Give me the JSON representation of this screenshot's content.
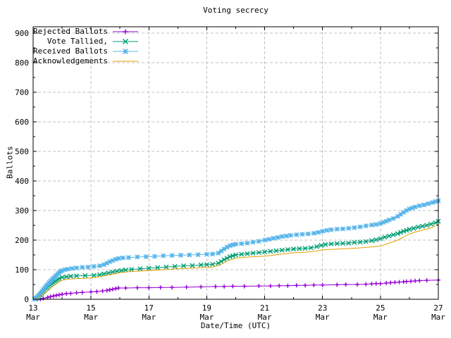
{
  "title": "Voting secrecy",
  "xlabel": "Date/Time (UTC)",
  "ylabel": "Ballots",
  "colors": {
    "background": "#ffffff",
    "border": "#000000",
    "grid": "#c0c0c0",
    "text": "#000000",
    "rejected": "#9400d3",
    "tallied": "#009e73",
    "received": "#56b4e9",
    "acknowledgements": "#e69f00"
  },
  "chart_data": {
    "type": "line",
    "title": "Voting secrecy",
    "xlabel": "Date/Time (UTC)",
    "ylabel": "Ballots",
    "x_unit": "day of March (UTC)",
    "xlim": [
      13,
      27
    ],
    "ylim": [
      0,
      921
    ],
    "grid": true,
    "legend_position": "top-left",
    "y_ticks": [
      0,
      100,
      200,
      300,
      400,
      500,
      600,
      700,
      800,
      900
    ],
    "y_minor_ticks": [
      50,
      150,
      250,
      350,
      450,
      550,
      650,
      750,
      850
    ],
    "x_ticks": [
      {
        "value": 13,
        "label": "13",
        "sub": "Mar"
      },
      {
        "value": 15,
        "label": "15",
        "sub": "Mar"
      },
      {
        "value": 17,
        "label": "17",
        "sub": "Mar"
      },
      {
        "value": 19,
        "label": "19",
        "sub": "Mar"
      },
      {
        "value": 21,
        "label": "21",
        "sub": "Mar"
      },
      {
        "value": 23,
        "label": "23",
        "sub": "Mar"
      },
      {
        "value": 25,
        "label": "25",
        "sub": "Mar"
      },
      {
        "value": 27,
        "label": "27",
        "sub": "Mar"
      }
    ],
    "x_minor_ticks": [
      14,
      16,
      18,
      20,
      22,
      24,
      26
    ],
    "series": [
      {
        "name": "Rejected Ballots",
        "color": "#9400d3",
        "marker": "+",
        "points": [
          [
            13.25,
            0
          ],
          [
            13.35,
            3
          ],
          [
            13.5,
            6
          ],
          [
            13.6,
            9
          ],
          [
            13.7,
            11
          ],
          [
            13.8,
            13
          ],
          [
            13.9,
            15
          ],
          [
            14.0,
            17
          ],
          [
            14.15,
            19
          ],
          [
            14.3,
            20
          ],
          [
            14.5,
            22
          ],
          [
            14.7,
            23
          ],
          [
            15.0,
            25
          ],
          [
            15.2,
            26
          ],
          [
            15.4,
            28
          ],
          [
            15.55,
            30
          ],
          [
            15.65,
            32
          ],
          [
            15.75,
            34
          ],
          [
            15.85,
            36
          ],
          [
            15.95,
            38
          ],
          [
            16.2,
            38
          ],
          [
            16.6,
            39
          ],
          [
            17.0,
            39
          ],
          [
            17.4,
            40
          ],
          [
            17.8,
            40
          ],
          [
            18.3,
            41
          ],
          [
            18.8,
            42
          ],
          [
            19.3,
            43
          ],
          [
            19.6,
            43
          ],
          [
            19.9,
            44
          ],
          [
            20.3,
            44
          ],
          [
            20.8,
            45
          ],
          [
            21.2,
            45
          ],
          [
            21.5,
            46
          ],
          [
            21.8,
            46
          ],
          [
            22.1,
            47
          ],
          [
            22.4,
            47
          ],
          [
            22.7,
            48
          ],
          [
            23.0,
            48
          ],
          [
            23.5,
            49
          ],
          [
            23.8,
            50
          ],
          [
            24.2,
            50
          ],
          [
            24.5,
            51
          ],
          [
            24.7,
            52
          ],
          [
            24.85,
            53
          ],
          [
            25.0,
            53
          ],
          [
            25.2,
            55
          ],
          [
            25.35,
            56
          ],
          [
            25.5,
            57
          ],
          [
            25.65,
            58
          ],
          [
            25.8,
            59
          ],
          [
            25.9,
            60
          ],
          [
            26.05,
            61
          ],
          [
            26.2,
            62
          ],
          [
            26.35,
            63
          ],
          [
            26.6,
            64
          ],
          [
            27.0,
            65
          ]
        ]
      },
      {
        "name": "Vote Tallied,",
        "color": "#009e73",
        "marker": "x",
        "points": [
          [
            13.1,
            1
          ],
          [
            13.15,
            5
          ],
          [
            13.2,
            10
          ],
          [
            13.25,
            15
          ],
          [
            13.3,
            20
          ],
          [
            13.35,
            25
          ],
          [
            13.4,
            30
          ],
          [
            13.45,
            35
          ],
          [
            13.5,
            39
          ],
          [
            13.55,
            44
          ],
          [
            13.6,
            48
          ],
          [
            13.65,
            52
          ],
          [
            13.7,
            56
          ],
          [
            13.75,
            60
          ],
          [
            13.8,
            63
          ],
          [
            13.85,
            67
          ],
          [
            13.9,
            70
          ],
          [
            14.0,
            74
          ],
          [
            14.15,
            76
          ],
          [
            14.3,
            78
          ],
          [
            14.5,
            79
          ],
          [
            14.8,
            80
          ],
          [
            15.1,
            81
          ],
          [
            15.3,
            83
          ],
          [
            15.45,
            86
          ],
          [
            15.6,
            89
          ],
          [
            15.75,
            92
          ],
          [
            15.9,
            95
          ],
          [
            16.05,
            97
          ],
          [
            16.2,
            99
          ],
          [
            16.4,
            101
          ],
          [
            16.7,
            103
          ],
          [
            17.0,
            105
          ],
          [
            17.3,
            107
          ],
          [
            17.6,
            109
          ],
          [
            17.9,
            111
          ],
          [
            18.2,
            113
          ],
          [
            18.5,
            114
          ],
          [
            18.8,
            116
          ],
          [
            19.0,
            117
          ],
          [
            19.2,
            118
          ],
          [
            19.4,
            122
          ],
          [
            19.5,
            128
          ],
          [
            19.6,
            134
          ],
          [
            19.7,
            139
          ],
          [
            19.8,
            144
          ],
          [
            19.9,
            147
          ],
          [
            20.0,
            150
          ],
          [
            20.2,
            152
          ],
          [
            20.4,
            154
          ],
          [
            20.6,
            156
          ],
          [
            20.8,
            158
          ],
          [
            21.0,
            160
          ],
          [
            21.2,
            162
          ],
          [
            21.4,
            164
          ],
          [
            21.6,
            166
          ],
          [
            21.8,
            168
          ],
          [
            22.0,
            170
          ],
          [
            22.2,
            171
          ],
          [
            22.4,
            172
          ],
          [
            22.6,
            174
          ],
          [
            22.8,
            178
          ],
          [
            22.95,
            182
          ],
          [
            23.1,
            185
          ],
          [
            23.3,
            187
          ],
          [
            23.5,
            188
          ],
          [
            23.7,
            189
          ],
          [
            23.9,
            190
          ],
          [
            24.1,
            192
          ],
          [
            24.3,
            193
          ],
          [
            24.5,
            195
          ],
          [
            24.7,
            198
          ],
          [
            24.85,
            201
          ],
          [
            25.0,
            205
          ],
          [
            25.15,
            210
          ],
          [
            25.3,
            214
          ],
          [
            25.45,
            218
          ],
          [
            25.6,
            222
          ],
          [
            25.7,
            226
          ],
          [
            25.8,
            230
          ],
          [
            25.9,
            233
          ],
          [
            26.0,
            236
          ],
          [
            26.15,
            240
          ],
          [
            26.3,
            244
          ],
          [
            26.45,
            247
          ],
          [
            26.6,
            250
          ],
          [
            26.75,
            254
          ],
          [
            26.9,
            259
          ],
          [
            27.0,
            264
          ]
        ]
      },
      {
        "name": "Received Ballots",
        "color": "#56b4e9",
        "marker": "*",
        "points": [
          [
            13.05,
            1
          ],
          [
            13.1,
            4
          ],
          [
            13.15,
            8
          ],
          [
            13.2,
            14
          ],
          [
            13.25,
            20
          ],
          [
            13.3,
            27
          ],
          [
            13.35,
            33
          ],
          [
            13.4,
            39
          ],
          [
            13.45,
            45
          ],
          [
            13.5,
            50
          ],
          [
            13.55,
            56
          ],
          [
            13.6,
            61
          ],
          [
            13.65,
            66
          ],
          [
            13.7,
            71
          ],
          [
            13.75,
            76
          ],
          [
            13.8,
            81
          ],
          [
            13.85,
            86
          ],
          [
            13.9,
            90
          ],
          [
            13.95,
            94
          ],
          [
            14.0,
            97
          ],
          [
            14.1,
            100
          ],
          [
            14.2,
            102
          ],
          [
            14.35,
            104
          ],
          [
            14.5,
            106
          ],
          [
            14.7,
            108
          ],
          [
            14.9,
            109
          ],
          [
            15.1,
            111
          ],
          [
            15.3,
            113
          ],
          [
            15.45,
            117
          ],
          [
            15.55,
            122
          ],
          [
            15.65,
            127
          ],
          [
            15.75,
            131
          ],
          [
            15.85,
            135
          ],
          [
            15.95,
            138
          ],
          [
            16.1,
            140
          ],
          [
            16.3,
            141
          ],
          [
            16.6,
            143
          ],
          [
            16.9,
            144
          ],
          [
            17.2,
            145
          ],
          [
            17.5,
            147
          ],
          [
            17.8,
            148
          ],
          [
            18.1,
            149
          ],
          [
            18.4,
            150
          ],
          [
            18.7,
            151
          ],
          [
            19.0,
            152
          ],
          [
            19.2,
            153
          ],
          [
            19.4,
            156
          ],
          [
            19.5,
            163
          ],
          [
            19.6,
            170
          ],
          [
            19.7,
            176
          ],
          [
            19.8,
            181
          ],
          [
            19.9,
            184
          ],
          [
            20.0,
            186
          ],
          [
            20.2,
            188
          ],
          [
            20.4,
            190
          ],
          [
            20.6,
            193
          ],
          [
            20.8,
            196
          ],
          [
            21.0,
            200
          ],
          [
            21.15,
            203
          ],
          [
            21.3,
            206
          ],
          [
            21.45,
            209
          ],
          [
            21.6,
            212
          ],
          [
            21.75,
            214
          ],
          [
            21.9,
            216
          ],
          [
            22.1,
            218
          ],
          [
            22.3,
            220
          ],
          [
            22.5,
            221
          ],
          [
            22.7,
            223
          ],
          [
            22.85,
            226
          ],
          [
            23.0,
            230
          ],
          [
            23.15,
            233
          ],
          [
            23.3,
            235
          ],
          [
            23.5,
            237
          ],
          [
            23.7,
            238
          ],
          [
            23.9,
            240
          ],
          [
            24.1,
            242
          ],
          [
            24.3,
            245
          ],
          [
            24.5,
            248
          ],
          [
            24.7,
            251
          ],
          [
            24.85,
            253
          ],
          [
            25.0,
            256
          ],
          [
            25.1,
            260
          ],
          [
            25.2,
            264
          ],
          [
            25.3,
            268
          ],
          [
            25.45,
            273
          ],
          [
            25.6,
            280
          ],
          [
            25.7,
            287
          ],
          [
            25.8,
            294
          ],
          [
            25.9,
            300
          ],
          [
            26.0,
            305
          ],
          [
            26.1,
            309
          ],
          [
            26.2,
            312
          ],
          [
            26.35,
            316
          ],
          [
            26.5,
            319
          ],
          [
            26.65,
            323
          ],
          [
            26.8,
            327
          ],
          [
            26.9,
            330
          ],
          [
            27.0,
            333
          ]
        ]
      },
      {
        "name": "Acknowledgements",
        "color": "#e69f00",
        "marker": "none",
        "points": [
          [
            13.1,
            0
          ],
          [
            13.2,
            6
          ],
          [
            13.3,
            14
          ],
          [
            13.4,
            22
          ],
          [
            13.5,
            30
          ],
          [
            13.6,
            38
          ],
          [
            13.7,
            45
          ],
          [
            13.8,
            52
          ],
          [
            13.9,
            59
          ],
          [
            14.0,
            64
          ],
          [
            14.2,
            68
          ],
          [
            14.5,
            70
          ],
          [
            14.8,
            71
          ],
          [
            15.1,
            73
          ],
          [
            15.4,
            78
          ],
          [
            15.7,
            84
          ],
          [
            16.0,
            90
          ],
          [
            16.3,
            93
          ],
          [
            16.6,
            95
          ],
          [
            17.0,
            97
          ],
          [
            17.4,
            99
          ],
          [
            17.8,
            102
          ],
          [
            18.2,
            104
          ],
          [
            18.6,
            106
          ],
          [
            19.0,
            108
          ],
          [
            19.2,
            109
          ],
          [
            19.4,
            114
          ],
          [
            19.6,
            124
          ],
          [
            19.8,
            133
          ],
          [
            20.0,
            139
          ],
          [
            20.2,
            141
          ],
          [
            20.5,
            143
          ],
          [
            21.0,
            146
          ],
          [
            21.3,
            149
          ],
          [
            21.6,
            153
          ],
          [
            22.0,
            157
          ],
          [
            22.4,
            159
          ],
          [
            22.8,
            163
          ],
          [
            23.0,
            167
          ],
          [
            23.4,
            169
          ],
          [
            23.8,
            171
          ],
          [
            24.2,
            173
          ],
          [
            24.6,
            176
          ],
          [
            25.0,
            180
          ],
          [
            25.2,
            186
          ],
          [
            25.4,
            193
          ],
          [
            25.6,
            200
          ],
          [
            25.8,
            210
          ],
          [
            26.0,
            221
          ],
          [
            26.2,
            227
          ],
          [
            26.4,
            232
          ],
          [
            26.6,
            237
          ],
          [
            26.8,
            243
          ],
          [
            27.0,
            254
          ]
        ]
      }
    ]
  }
}
